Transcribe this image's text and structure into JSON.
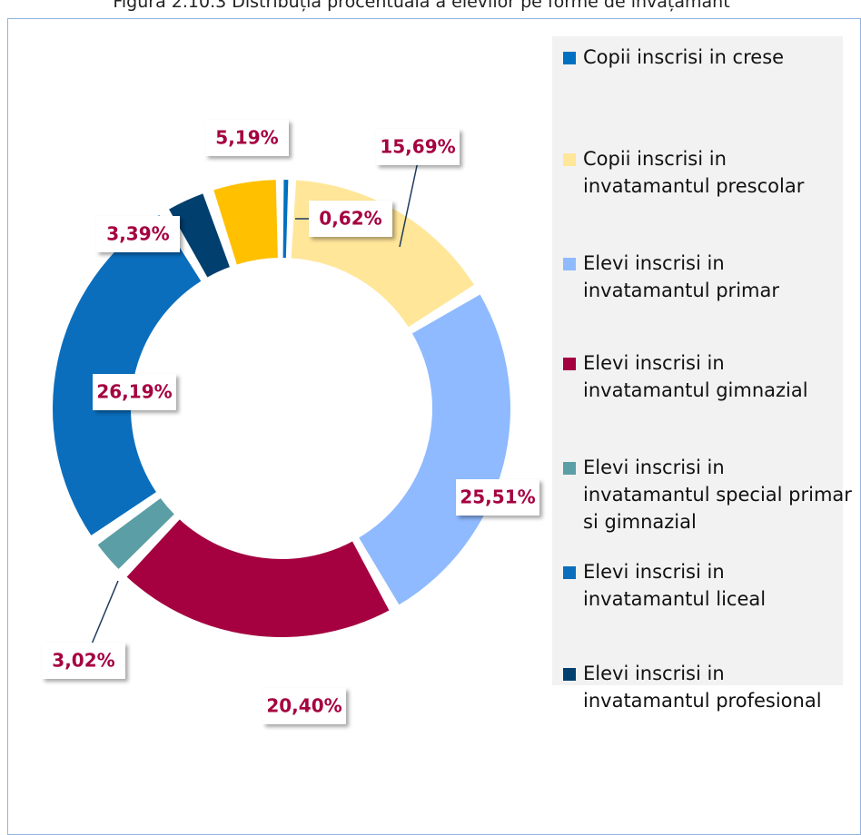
{
  "chart_data": {
    "type": "donut",
    "title": "Figura 2.10.3 Distribuția procentuală a elevilor pe forme de învățământ",
    "categories": [
      "Copii inscrisi in crese",
      "Copii inscrisi in invatamantul prescolar",
      "Elevi inscrisi in invatamantul primar",
      "Elevi inscrisi in invatamantul gimnazial",
      "Elevi inscrisi in invatamantul special primar si gimnazial",
      "Elevi inscrisi in invatamantul liceal",
      "Elevi inscrisi in invatamantul profesional",
      null
    ],
    "values": [
      0.62,
      15.69,
      25.51,
      20.4,
      3.02,
      26.19,
      3.39,
      5.19
    ],
    "value_labels": [
      "0,62%",
      "15,69%",
      "25,51%",
      "20,40%",
      "3,02%",
      "26,19%",
      "3,39%",
      "5,19%"
    ],
    "colors": [
      "#0070c0",
      "#ffe699",
      "#8fbaff",
      "#a50040",
      "#5b9ea6",
      "#0a6ebd",
      "#003f6e",
      "#ffc000"
    ],
    "legend": "right"
  }
}
